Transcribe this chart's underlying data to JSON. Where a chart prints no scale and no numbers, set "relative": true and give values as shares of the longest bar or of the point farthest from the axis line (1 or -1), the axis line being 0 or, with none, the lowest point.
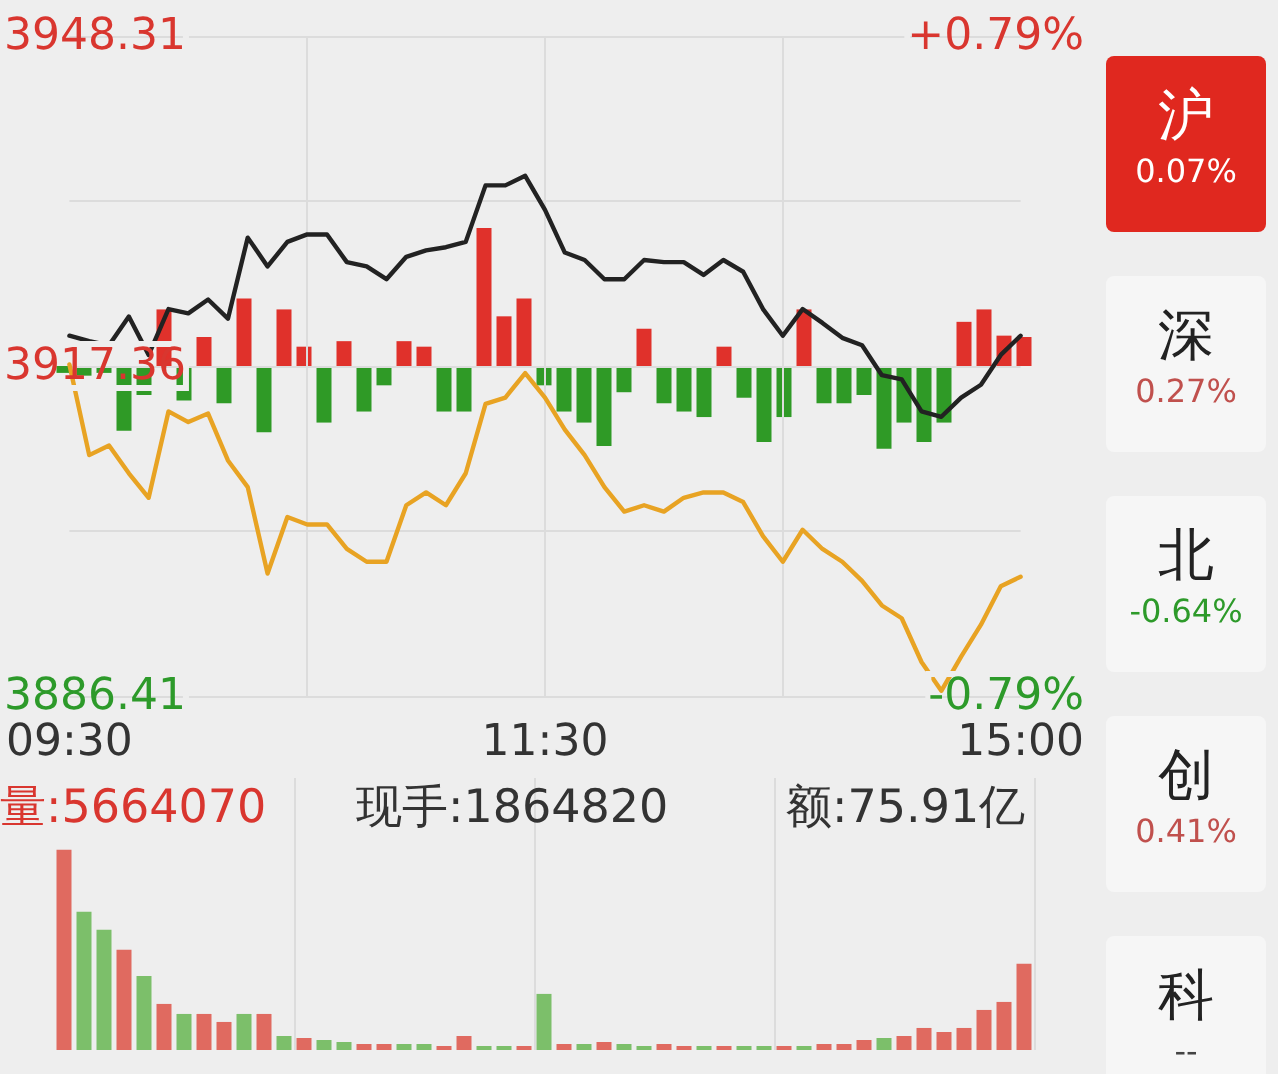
{
  "chart_data": [
    {
      "type": "line",
      "categories": [
        "09:30",
        null,
        null,
        null,
        null,
        null,
        null,
        null,
        null,
        null,
        null,
        null,
        null,
        null,
        null,
        null,
        null,
        null,
        null,
        null,
        null,
        null,
        null,
        null,
        "11:30",
        null,
        null,
        null,
        null,
        null,
        null,
        null,
        null,
        null,
        null,
        null,
        null,
        null,
        null,
        null,
        null,
        null,
        null,
        null,
        null,
        null,
        null,
        null,
        "15:00"
      ],
      "series": [
        {
          "color": "#222222",
          "values": [
            3920.2,
            3919.7,
            3919.3,
            3922.0,
            3918.4,
            3922.7,
            3922.3,
            3923.6,
            3921.8,
            3929.4,
            3926.7,
            3929.0,
            3929.7,
            3929.7,
            3927.1,
            3926.7,
            3925.5,
            3927.6,
            3928.2,
            3928.5,
            3929.0,
            3934.3,
            3934.3,
            3935.2,
            3932.0,
            3928.0,
            3927.3,
            3925.5,
            3925.5,
            3927.3,
            3927.1,
            3927.1,
            3925.9,
            3927.3,
            3926.2,
            3922.7,
            3920.2,
            3922.7,
            3921.4,
            3920.0,
            3919.3,
            3916.5,
            3916.1,
            3913.1,
            3912.6,
            3914.4,
            3915.6,
            3918.4,
            3920.2
          ]
        },
        {
          "color": "#e8a323",
          "values": [
            3917.5,
            3909.0,
            3909.9,
            3907.3,
            3905.0,
            3913.1,
            3912.1,
            3912.9,
            3908.5,
            3906.0,
            3897.9,
            3903.2,
            3902.5,
            3902.5,
            3900.2,
            3899.0,
            3899.0,
            3904.3,
            3905.5,
            3904.3,
            3907.3,
            3913.8,
            3914.4,
            3916.7,
            3914.4,
            3911.4,
            3909.0,
            3906.0,
            3903.7,
            3904.3,
            3903.7,
            3905.0,
            3905.5,
            3905.5,
            3904.6,
            3901.4,
            3899.0,
            3902.0,
            3900.2,
            3899.0,
            3897.2,
            3894.9,
            3893.7,
            3889.6,
            3886.9,
            3890.1,
            3893.1,
            3896.7,
            3897.6
          ]
        }
      ],
      "ylim": [
        3886.41,
        3948.31
      ],
      "yticks": [
        3886.41,
        {
          "value": 3901.885,
          "label": null
        },
        3917.36,
        {
          "value": 3932.835,
          "label": null
        },
        3948.31
      ],
      "y2lim": [
        -0.79,
        0.79
      ],
      "y2ticks": [
        {
          "value": -0.79,
          "label": "-0.79%"
        },
        {
          "value": 0.79,
          "label": "+0.79%"
        }
      ],
      "grid": true,
      "marker": "none"
    },
    {
      "type": "bar",
      "relative": true,
      "categories": [
        null,
        null,
        null,
        null,
        null,
        null,
        null,
        null,
        null,
        null,
        null,
        null,
        null,
        null,
        null,
        null,
        null,
        null,
        null,
        null,
        null,
        null,
        null,
        null,
        null,
        null,
        null,
        null,
        null,
        null,
        null,
        null,
        null,
        null,
        null,
        null,
        null,
        null,
        null,
        null,
        null,
        null,
        null,
        null,
        null,
        null,
        null,
        null,
        null
      ],
      "values": [
        -0.05,
        -0.07,
        -0.05,
        -0.47,
        -0.21,
        0.41,
        -0.25,
        0.21,
        -0.27,
        0.49,
        -0.48,
        0.41,
        0.14,
        -0.41,
        0.18,
        -0.33,
        -0.14,
        0.18,
        0.14,
        -0.33,
        -0.33,
        1,
        0.36,
        0.49,
        -0.14,
        -0.33,
        -0.41,
        -0.58,
        -0.19,
        0.27,
        -0.27,
        -0.33,
        -0.37,
        0.14,
        -0.23,
        -0.55,
        -0.37,
        0.41,
        -0.27,
        -0.27,
        -0.21,
        -0.6,
        -0.41,
        -0.55,
        -0.41,
        0.32,
        0.41,
        0.22,
        0.21
      ],
      "colors": [
        "#2f9a26",
        "#2f9a26",
        "#2f9a26",
        "#2f9a26",
        "#2f9a26",
        "#e0312b",
        "#2f9a26",
        "#e0312b",
        "#2f9a26",
        "#e0312b",
        "#2f9a26",
        "#e0312b",
        "#e0312b",
        "#2f9a26",
        "#e0312b",
        "#2f9a26",
        "#2f9a26",
        "#e0312b",
        "#e0312b",
        "#2f9a26",
        "#2f9a26",
        "#e0312b",
        "#e0312b",
        "#e0312b",
        "#2f9a26",
        "#2f9a26",
        "#2f9a26",
        "#2f9a26",
        "#2f9a26",
        "#e0312b",
        "#2f9a26",
        "#2f9a26",
        "#2f9a26",
        "#e0312b",
        "#2f9a26",
        "#2f9a26",
        "#2f9a26",
        "#e0312b",
        "#2f9a26",
        "#2f9a26",
        "#2f9a26",
        "#2f9a26",
        "#2f9a26",
        "#2f9a26",
        "#2f9a26",
        "#e0312b",
        "#e0312b",
        "#e0312b",
        "#e0312b"
      ]
    },
    {
      "type": "bar",
      "relative": true,
      "grid": "x",
      "categories": [
        null,
        null,
        null,
        null,
        null,
        null,
        null,
        null,
        null,
        null,
        null,
        null,
        null,
        null,
        null,
        null,
        null,
        null,
        null,
        null,
        null,
        null,
        null,
        null,
        null,
        null,
        null,
        null,
        null,
        null,
        null,
        null,
        null,
        null,
        null,
        null,
        null,
        null,
        null,
        null,
        null,
        null,
        null,
        null,
        null,
        null,
        null,
        null,
        null
      ],
      "values": [
        1,
        0.69,
        0.6,
        0.5,
        0.37,
        0.23,
        0.18,
        0.18,
        0.14,
        0.18,
        0.18,
        0.07,
        0.06,
        0.05,
        0.04,
        0.03,
        0.03,
        0.03,
        0.03,
        0.02,
        0.07,
        0.02,
        0.02,
        0.02,
        0.28,
        0.03,
        0.03,
        0.04,
        0.03,
        0.02,
        0.03,
        0.02,
        0.02,
        0.02,
        0.02,
        0.02,
        0.02,
        0.02,
        0.03,
        0.03,
        0.05,
        0.06,
        0.07,
        0.11,
        0.09,
        0.11,
        0.2,
        0.24,
        0.43
      ],
      "colors": [
        "#e06a60",
        "#7cbf6a",
        "#7cbf6a",
        "#e06a60",
        "#7cbf6a",
        "#e06a60",
        "#7cbf6a",
        "#e06a60",
        "#e06a60",
        "#7cbf6a",
        "#e06a60",
        "#7cbf6a",
        "#e06a60",
        "#7cbf6a",
        "#7cbf6a",
        "#e06a60",
        "#e06a60",
        "#7cbf6a",
        "#7cbf6a",
        "#e06a60",
        "#e06a60",
        "#7cbf6a",
        "#7cbf6a",
        "#e06a60",
        "#7cbf6a",
        "#e06a60",
        "#7cbf6a",
        "#e06a60",
        "#7cbf6a",
        "#7cbf6a",
        "#e06a60",
        "#e06a60",
        "#7cbf6a",
        "#e06a60",
        "#7cbf6a",
        "#7cbf6a",
        "#e06a60",
        "#7cbf6a",
        "#e06a60",
        "#e06a60",
        "#e06a60",
        "#7cbf6a",
        "#e06a60",
        "#e06a60",
        "#e06a60",
        "#e06a60",
        "#e06a60",
        "#e06a60",
        "#e06a60"
      ],
      "annotations": [
        "量:5664070",
        "现手:1864820",
        "额:75.91亿"
      ]
    },
    {
      "type": "other",
      "annotations": [
        "沪",
        "0.07%",
        "深",
        "0.27%",
        "北",
        "-0.64%",
        "创",
        "0.41%",
        "科",
        "--"
      ]
    }
  ]
}
